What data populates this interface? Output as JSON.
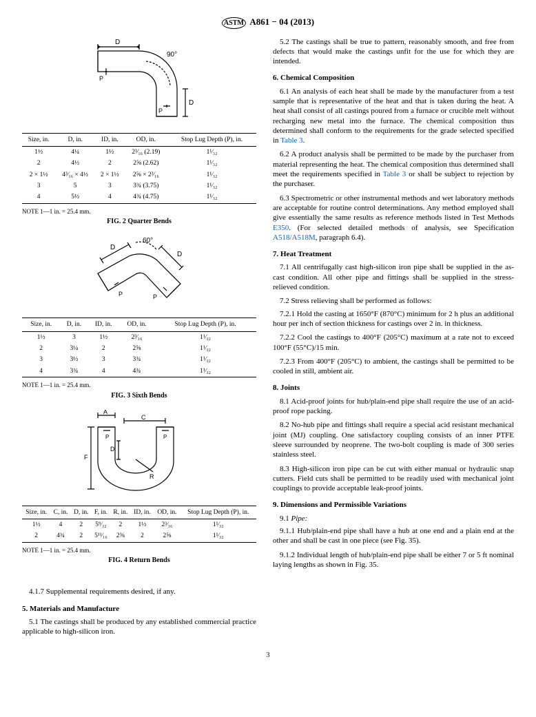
{
  "header": {
    "designation": "A861 − 04 (2013)"
  },
  "fig2": {
    "note": "NOTE 1—1 in. = 25.4 mm.",
    "caption": "FIG. 2 Quarter Bends",
    "cols": [
      "Size, in.",
      "D, in.",
      "ID, in.",
      "OD, in.",
      "Stop Lug Depth (P), in."
    ],
    "rows": [
      [
        "1½",
        "4¼",
        "1½",
        "2³⁄₁₆ (2.19)",
        "1¹⁄₃₂"
      ],
      [
        "2",
        "4½",
        "2",
        "2⅝ (2.62)",
        "1¹⁄₃₂"
      ],
      [
        "2 × 1½",
        "4³⁄₁₆ × 4½",
        "2 × 1½",
        "2⅝ × 2³⁄₁₆",
        "1¹⁄₃₂"
      ],
      [
        "3",
        "5",
        "3",
        "3¾ (3.75)",
        "1¹⁄₃₂"
      ],
      [
        "4",
        "5½",
        "4",
        "4¾ (4.75)",
        "1¹⁄₃₂"
      ]
    ],
    "diagram": {
      "angle_label": "90°",
      "stroke": "#000"
    }
  },
  "fig3": {
    "note": "NOTE 1—1 in. = 25.4 mm.",
    "caption": "FIG. 3 Sixth Bends",
    "cols": [
      "Size, in.",
      "D, in.",
      "ID, in.",
      "OD, in.",
      "Stop Lug Depth (P), in."
    ],
    "rows": [
      [
        "1½",
        "3",
        "1½",
        "2³⁄₁₆",
        "1¹⁄₃₂"
      ],
      [
        "2",
        "3¼",
        "2",
        "2⅝",
        "1¹⁄₃₂"
      ],
      [
        "3",
        "3½",
        "3",
        "3¾",
        "1¹⁄₃₂"
      ],
      [
        "4",
        "3¾",
        "4",
        "4¾",
        "1¹⁄₃₂"
      ]
    ],
    "diagram": {
      "angle_label": "60°",
      "stroke": "#000"
    }
  },
  "fig4": {
    "note": "NOTE 1—1 in. = 25.4 mm.",
    "caption": "FIG. 4 Return Bends",
    "cols": [
      "Size, in.",
      "C, in.",
      "D, in.",
      "F, in.",
      "R, in.",
      "ID, in.",
      "OD, in.",
      "Stop Lug Depth (P), in."
    ],
    "rows": [
      [
        "1½",
        "4",
        "2",
        "5⁹⁄₃₂",
        "2",
        "1½",
        "2³⁄₁₆",
        "1¹⁄₃₂"
      ],
      [
        "2",
        "4¾",
        "2",
        "5¹¹⁄₁₆",
        "2⅜",
        "2",
        "2⅝",
        "1¹⁄₃₂"
      ]
    ],
    "diagram": {
      "stroke": "#000"
    }
  },
  "left_text": {
    "p417": "4.1.7 Supplemental requirements desired, if any.",
    "h5": "5.  Materials and Manufacture",
    "p51": "5.1 The castings shall be produced by any established commercial practice applicable to high-silicon iron."
  },
  "right_text": {
    "p52": "5.2  The castings shall be true to pattern, reasonably smooth, and free from defects that would make the castings unfit for the use for which they are intended.",
    "h6": "6.  Chemical Composition",
    "p61a": "6.1  An analysis of each heat shall be made by the manufacturer from a test sample that is representative of the heat and that is taken during the heat. A heat shall consist of all castings poured from a furnace or crucible melt without recharging new metal into the furnace. The chemical composition thus determined shall conform to the requirements for the grade selected specified in ",
    "p61b": "Table 3",
    "p61c": ".",
    "p62a": "6.2  A product analysis shall be permitted to be made by the purchaser from material representing the heat. The chemical composition thus determined shall meet the requirements specified in ",
    "p62b": "Table 3",
    "p62c": " or shall be subject to rejection by the purchaser.",
    "p63a": "6.3  Spectrometric or other instrumental methods and wet laboratory methods are acceptable for routine control determinations. Any method employed shall give essentially the same results as reference methods listed in Test Methods ",
    "p63b": "E350",
    "p63c": ". (For selected detailed methods of analysis, see Specification ",
    "p63d": "A518/A518M",
    "p63e": ", paragraph 6.4).",
    "h7": "7.  Heat Treatment",
    "p71": "7.1 All centrifugally cast high-silicon iron pipe shall be supplied in the as-cast condition. All other pipe and fittings shall be supplied in the stress-relieved condition.",
    "p72": "7.2 Stress relieving shall be performed as follows:",
    "p721": "7.2.1  Hold the casting at 1650°F (870°C) minimum for 2 h plus an additional hour per inch of section thickness for castings over 2 in. in thickness.",
    "p722": "7.2.2  Cool the castings to 400°F (205°C) maximum at a rate not to exceed 100°F (55°C)/15 min.",
    "p723": "7.2.3  From 400°F (205°C) to ambient, the castings shall be permitted to be cooled in still, ambient air.",
    "h8": "8.  Joints",
    "p81": "8.1  Acid-proof joints for hub/plain-end pipe shall require the use of an acid-proof rope packing.",
    "p82": "8.2  No-hub pipe and fittings shall require a special acid resistant mechanical joint (MJ) coupling. One satisfactory coupling consists of an inner PTFE sleeve surrounded by neoprene. The two-bolt coupling is made of 300 series stainless steel.",
    "p83": "8.3  High-silicon iron pipe can be cut with either manual or hydraulic snap cutters. Field cuts shall be permitted to be readily used with mechanical joint couplings to provide acceptable leak-proof joints.",
    "h9": "9.  Dimensions and Permissible Variations",
    "p91": "9.1 Pipe:",
    "p911": "9.1.1  Hub/plain-end pipe shall have a hub at one end and a plain end at the other and shall be cast in one piece (see Fig. 35).",
    "p912": "9.1.2  Individual length of hub/plain-end pipe shall be either 7 or 5 ft nominal laying lengths as shown in Fig. 35."
  },
  "pagenum": "3",
  "style": {
    "body_fontsize_pt": 11,
    "table_fontsize_pt": 9.5,
    "heading_bold": true,
    "rule_color": "#000",
    "link_color": "#0066cc",
    "bg": "#ffffff"
  }
}
